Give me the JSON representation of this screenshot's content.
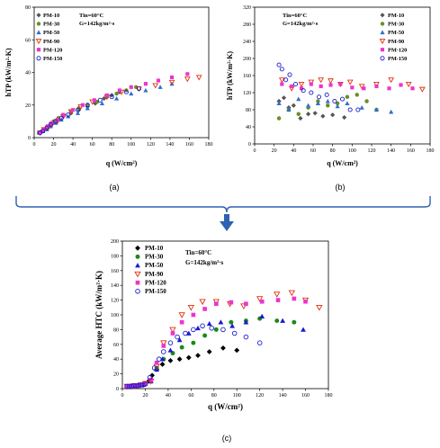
{
  "chart_data": [
    {
      "panel": "a",
      "type": "scatter",
      "panel_label": "(a)",
      "xlabel": "q (W/cm²)",
      "ylabel": "hTP (kW/m²·K)",
      "xlim": [
        0,
        180
      ],
      "ylim": [
        0,
        80
      ],
      "xticks": [
        0,
        20,
        40,
        60,
        80,
        100,
        120,
        140,
        160,
        180
      ],
      "yticks": [
        0,
        20,
        40,
        60,
        80
      ],
      "annotation": [
        "Tin=60°C",
        "G=142kg/m²·s"
      ],
      "legend_position": "top-left",
      "series": [
        {
          "name": "PM-10",
          "color": "#555555",
          "marker": "diamond",
          "x": [
            5,
            8,
            11,
            14,
            17,
            20,
            25,
            30,
            38,
            46,
            55,
            63,
            72,
            80,
            88
          ],
          "y": [
            3,
            4,
            5,
            6,
            7,
            9,
            11,
            13,
            15,
            17,
            19,
            21,
            24,
            26,
            28
          ]
        },
        {
          "name": "PM-30",
          "color": "#6b8e23",
          "marker": "circle",
          "x": [
            5,
            8,
            11,
            14,
            17,
            20,
            25,
            30,
            38,
            46,
            55,
            65,
            75,
            85,
            95,
            105
          ],
          "y": [
            3,
            4,
            5,
            6,
            8,
            10,
            12,
            14,
            16,
            18,
            20,
            22,
            25,
            27,
            29,
            31
          ]
        },
        {
          "name": "PM-50",
          "color": "#2e6fd0",
          "marker": "triangle",
          "x": [
            5,
            9,
            13,
            17,
            22,
            28,
            35,
            45,
            55,
            70,
            85,
            100,
            115,
            130,
            142
          ],
          "y": [
            3,
            4,
            5,
            7,
            9,
            11,
            13,
            15,
            18,
            21,
            24,
            27,
            29,
            31,
            33
          ]
        },
        {
          "name": "PM-90",
          "color": "#e03010",
          "marker": "triangle-down",
          "x": [
            6,
            10,
            14,
            18,
            24,
            30,
            38,
            48,
            60,
            75,
            90,
            108,
            125,
            142,
            158,
            170
          ],
          "y": [
            3,
            5,
            6,
            8,
            10,
            13,
            16,
            19,
            22,
            25,
            28,
            30,
            32,
            34,
            36,
            37
          ]
        },
        {
          "name": "PM-120",
          "color": "#ee33cc",
          "marker": "square",
          "x": [
            6,
            10,
            14,
            18,
            24,
            30,
            40,
            50,
            62,
            75,
            88,
            100,
            115,
            128,
            142,
            158
          ],
          "y": [
            3,
            5,
            7,
            9,
            11,
            14,
            17,
            20,
            23,
            26,
            29,
            31,
            33,
            35,
            37,
            39
          ]
        },
        {
          "name": "PM-150",
          "color": "#1a1acc",
          "marker": "circle-open",
          "x": [
            6,
            9,
            13,
            17,
            22,
            28,
            35,
            45,
            55,
            68,
            80,
            95,
            108
          ],
          "y": [
            3,
            4,
            6,
            8,
            10,
            12,
            14,
            17,
            20,
            23,
            25,
            28,
            30
          ]
        }
      ]
    },
    {
      "panel": "b",
      "type": "scatter",
      "panel_label": "(b)",
      "xlabel": "q (W/cm²)",
      "ylabel": "hTP (kW/m²·K)",
      "xlim": [
        0,
        180
      ],
      "ylim": [
        0,
        320
      ],
      "xticks": [
        0,
        20,
        40,
        60,
        80,
        100,
        120,
        140,
        160,
        180
      ],
      "yticks": [
        0,
        40,
        80,
        120,
        160,
        200,
        240,
        280,
        320
      ],
      "annotation": [
        "Tin=60°C",
        "G=142kg/m²·s"
      ],
      "legend_position": "top-right",
      "series": [
        {
          "name": "PM-10",
          "color": "#555555",
          "marker": "diamond",
          "x": [
            25,
            30,
            35,
            40,
            47,
            55,
            62,
            70,
            80,
            92
          ],
          "y": [
            100,
            108,
            85,
            90,
            60,
            70,
            72,
            65,
            68,
            62
          ]
        },
        {
          "name": "PM-30",
          "color": "#6b8e23",
          "marker": "circle",
          "x": [
            25,
            35,
            45,
            55,
            65,
            75,
            85,
            95,
            105,
            115,
            125
          ],
          "y": [
            60,
            80,
            70,
            85,
            100,
            90,
            95,
            110,
            115,
            100,
            80
          ]
        },
        {
          "name": "PM-50",
          "color": "#2e6fd0",
          "marker": "triangle",
          "x": [
            25,
            35,
            45,
            55,
            65,
            75,
            85,
            95,
            110,
            125,
            140
          ],
          "y": [
            95,
            80,
            105,
            90,
            95,
            100,
            88,
            95,
            85,
            80,
            75
          ]
        },
        {
          "name": "PM-90",
          "color": "#e03010",
          "marker": "triangle-down",
          "x": [
            28,
            38,
            48,
            58,
            68,
            78,
            88,
            98,
            110,
            125,
            140,
            158,
            172
          ],
          "y": [
            150,
            130,
            140,
            145,
            150,
            148,
            140,
            145,
            135,
            140,
            150,
            140,
            128
          ]
        },
        {
          "name": "PM-120",
          "color": "#ee33cc",
          "marker": "square",
          "x": [
            28,
            38,
            48,
            58,
            68,
            78,
            88,
            100,
            112,
            125,
            138,
            150,
            162
          ],
          "y": [
            140,
            135,
            130,
            140,
            135,
            138,
            140,
            132,
            130,
            135,
            130,
            138,
            130
          ]
        },
        {
          "name": "PM-150",
          "color": "#1a1acc",
          "marker": "circle-open",
          "x": [
            25,
            28,
            32,
            36,
            42,
            50,
            58,
            66,
            74,
            82,
            90,
            98,
            106
          ],
          "y": [
            185,
            175,
            150,
            162,
            140,
            125,
            120,
            110,
            115,
            100,
            105,
            80,
            80
          ]
        }
      ]
    },
    {
      "panel": "c",
      "type": "scatter",
      "panel_label": "(c)",
      "xlabel": "q (W/cm²)",
      "ylabel": "Average HTC (kW/m²·K)",
      "xlim": [
        0,
        180
      ],
      "ylim": [
        0,
        200
      ],
      "xticks": [
        0,
        20,
        40,
        60,
        80,
        100,
        120,
        140,
        160,
        180
      ],
      "yticks": [
        0,
        20,
        40,
        60,
        80,
        100,
        120,
        140,
        160,
        180,
        200
      ],
      "annotation": [
        "Tin=60°C",
        "G=142kg/m²·s"
      ],
      "legend_position": "top-left",
      "series": [
        {
          "name": "PM-10",
          "color": "#000000",
          "marker": "diamond",
          "x": [
            4,
            6,
            8,
            10,
            12,
            14,
            16,
            18,
            20,
            23,
            26,
            30,
            35,
            42,
            50,
            58,
            66,
            76,
            88,
            100
          ],
          "y": [
            3,
            3,
            3,
            4,
            4,
            4,
            5,
            5,
            6,
            10,
            18,
            26,
            33,
            38,
            40,
            42,
            45,
            50,
            55,
            52
          ]
        },
        {
          "name": "PM-30",
          "color": "#1a8a1a",
          "marker": "circle",
          "x": [
            4,
            7,
            10,
            13,
            16,
            20,
            25,
            30,
            36,
            44,
            52,
            62,
            72,
            82,
            95,
            108,
            120,
            135,
            150
          ],
          "y": [
            3,
            3,
            4,
            4,
            5,
            7,
            12,
            28,
            40,
            48,
            56,
            62,
            72,
            80,
            90,
            92,
            95,
            92,
            90
          ]
        },
        {
          "name": "PM-50",
          "color": "#1a1acc",
          "marker": "triangle",
          "x": [
            4,
            7,
            10,
            13,
            16,
            20,
            25,
            30,
            35,
            42,
            50,
            58,
            66,
            76,
            86,
            96,
            108,
            122,
            140,
            158
          ],
          "y": [
            3,
            3,
            4,
            4,
            5,
            7,
            10,
            26,
            40,
            52,
            66,
            75,
            82,
            88,
            90,
            85,
            90,
            98,
            92,
            80
          ]
        },
        {
          "name": "PM-90",
          "color": "#e03010",
          "marker": "triangle-down",
          "x": [
            4,
            7,
            10,
            13,
            16,
            20,
            25,
            30,
            36,
            44,
            52,
            60,
            70,
            82,
            94,
            106,
            120,
            135,
            148,
            160,
            172
          ],
          "y": [
            3,
            3,
            4,
            4,
            5,
            7,
            10,
            30,
            62,
            80,
            100,
            110,
            118,
            118,
            115,
            112,
            122,
            128,
            130,
            120,
            110
          ]
        },
        {
          "name": "PM-120",
          "color": "#ee33cc",
          "marker": "square",
          "x": [
            4,
            7,
            10,
            13,
            16,
            20,
            25,
            30,
            36,
            44,
            52,
            62,
            72,
            82,
            95,
            108,
            122,
            136,
            150,
            160
          ],
          "y": [
            3,
            3,
            4,
            4,
            5,
            7,
            12,
            35,
            58,
            75,
            90,
            100,
            108,
            115,
            117,
            115,
            118,
            120,
            122,
            118
          ]
        },
        {
          "name": "PM-150",
          "color": "#1a1acc",
          "marker": "circle-open",
          "x": [
            4,
            6,
            8,
            10,
            12,
            14,
            16,
            18,
            20,
            24,
            28,
            32,
            36,
            42,
            48,
            55,
            62,
            70,
            78,
            88,
            98,
            108,
            120
          ],
          "y": [
            3,
            3,
            3,
            4,
            4,
            4,
            5,
            5,
            6,
            15,
            28,
            40,
            50,
            62,
            70,
            75,
            80,
            85,
            82,
            80,
            75,
            70,
            62
          ]
        }
      ]
    }
  ],
  "arrow": {
    "color": "#2f62b0"
  }
}
